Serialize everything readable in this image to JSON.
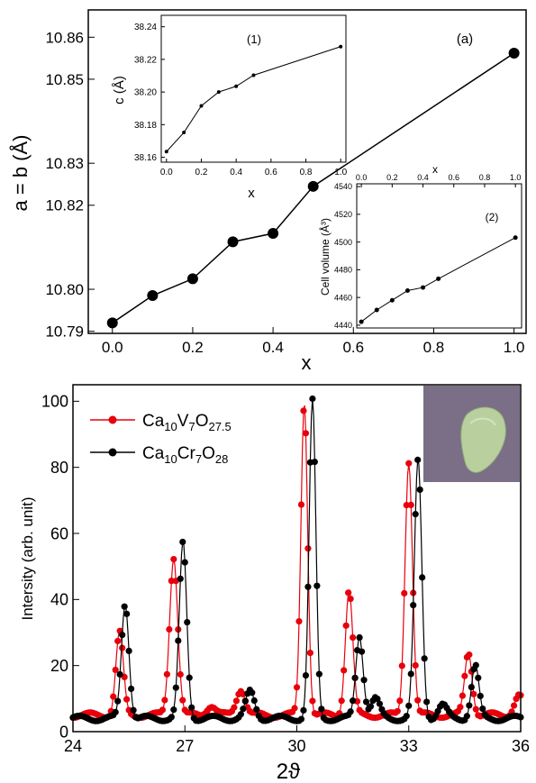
{
  "chart_data": [
    {
      "type": "line",
      "panel": "top-main",
      "annotation": "(a)",
      "xlabel": "x",
      "ylabel": "a = b (Å)",
      "xlim": [
        -0.06,
        1.03
      ],
      "ylim": [
        10.7895,
        10.8665
      ],
      "x_ticks": [
        "0.0",
        "0.2",
        "0.4",
        "0.6",
        "0.8",
        "1.0"
      ],
      "x_tick_values": [
        0,
        0.2,
        0.4,
        0.6,
        0.8,
        1.0
      ],
      "y_ticks": [
        "10.79",
        "10.80",
        "10.82",
        "10.83",
        "10.85",
        "10.86"
      ],
      "y_tick_values": [
        10.79,
        10.8,
        10.82,
        10.83,
        10.85,
        10.86
      ],
      "x": [
        0.0,
        0.1,
        0.2,
        0.3,
        0.4,
        0.5,
        1.0
      ],
      "values": [
        10.792,
        10.7985,
        10.8025,
        10.8113,
        10.8133,
        10.8245,
        10.8562
      ],
      "grid": false
    },
    {
      "type": "line",
      "panel": "inset-1",
      "annotation": "(1)",
      "xlabel": "x",
      "ylabel": "c (Å)",
      "xlim": [
        -0.03,
        1.03
      ],
      "ylim": [
        38.157,
        38.247
      ],
      "x_ticks": [
        "0.0",
        "0.2",
        "0.4",
        "0.6",
        "0.8",
        "1.0"
      ],
      "x_tick_values": [
        0,
        0.2,
        0.4,
        0.6,
        0.8,
        1.0
      ],
      "y_ticks": [
        "38.16",
        "38.18",
        "38.20",
        "38.22",
        "38.24"
      ],
      "y_tick_values": [
        38.16,
        38.18,
        38.2,
        38.22,
        38.24
      ],
      "x": [
        0.0,
        0.1,
        0.2,
        0.3,
        0.4,
        0.5,
        1.0
      ],
      "values": [
        38.1635,
        38.1752,
        38.1915,
        38.2,
        38.2035,
        38.2103,
        38.2278
      ],
      "grid": false
    },
    {
      "type": "line",
      "panel": "inset-2",
      "annotation": "(2)",
      "xlabel": "x",
      "ylabel": "Cell volume (Å³)",
      "xlim": [
        -0.03,
        1.04
      ],
      "ylim": [
        4438,
        4542
      ],
      "x_ticks": [
        "0.0",
        "0.2",
        "0.4",
        "0.6",
        "0.8",
        "1.0"
      ],
      "x_tick_values": [
        0,
        0.2,
        0.4,
        0.6,
        0.8,
        1.0
      ],
      "y_ticks": [
        "4440",
        "4460",
        "4480",
        "4500",
        "4520",
        "4540"
      ],
      "y_tick_values": [
        4440,
        4460,
        4480,
        4500,
        4520,
        4540
      ],
      "x": [
        0.0,
        0.1,
        0.2,
        0.3,
        0.4,
        0.5,
        1.0
      ],
      "values": [
        4442.5,
        4451,
        4458,
        4465,
        4467.2,
        4473.5,
        4503.2
      ],
      "grid": false
    },
    {
      "type": "line",
      "panel": "bottom-xrd",
      "xlabel": "2ϑ",
      "ylabel": "Intersity (arb. unit)",
      "xlim": [
        24,
        36
      ],
      "ylim": [
        0,
        105
      ],
      "x_ticks": [
        "24",
        "27",
        "30",
        "33",
        "36"
      ],
      "x_tick_values": [
        24,
        27,
        30,
        33,
        36
      ],
      "y_ticks": [
        "0",
        "20",
        "40",
        "60",
        "80",
        "100"
      ],
      "y_tick_values": [
        0,
        20,
        40,
        60,
        80,
        100
      ],
      "legend": "top-left",
      "grid": false,
      "series": [
        {
          "name": "Ca10V7O27.5",
          "color": "#e8000b",
          "baseline": 5,
          "peaks": [
            [
              25.25,
              25,
              0.1
            ],
            [
              26.7,
              48,
              0.11
            ],
            [
              27.7,
              3,
              0.12
            ],
            [
              28.5,
              8,
              0.12
            ],
            [
              30.2,
              95,
              0.09
            ],
            [
              31.4,
              38,
              0.1
            ],
            [
              33.0,
              77,
              0.1
            ],
            [
              34.6,
              19,
              0.1
            ],
            [
              35.95,
              6,
              0.12
            ]
          ]
        },
        {
          "name": "Ca10Cr7O28",
          "color": "#000000",
          "baseline": 4,
          "peaks": [
            [
              25.4,
              35,
              0.1
            ],
            [
              26.95,
              53,
              0.1
            ],
            [
              28.75,
              8,
              0.12
            ],
            [
              30.42,
              96,
              0.09
            ],
            [
              31.68,
              25,
              0.1
            ],
            [
              32.1,
              6,
              0.12
            ],
            [
              33.25,
              78,
              0.1
            ],
            [
              34.78,
              16,
              0.1
            ],
            [
              33.9,
              4,
              0.12
            ]
          ]
        }
      ]
    }
  ],
  "legend": {
    "item1": {
      "base": "Ca",
      "sub1": "10",
      "el2": "V",
      "sub2": "7",
      "el3": "O",
      "sub3": "27.5"
    },
    "item2": {
      "base": "Ca",
      "sub1": "10",
      "el2": "Cr",
      "sub2": "7",
      "el3": "O",
      "sub3": "28"
    }
  },
  "photo": {
    "background": "#7a6f86",
    "pellet_color": "#b9cf9e"
  }
}
